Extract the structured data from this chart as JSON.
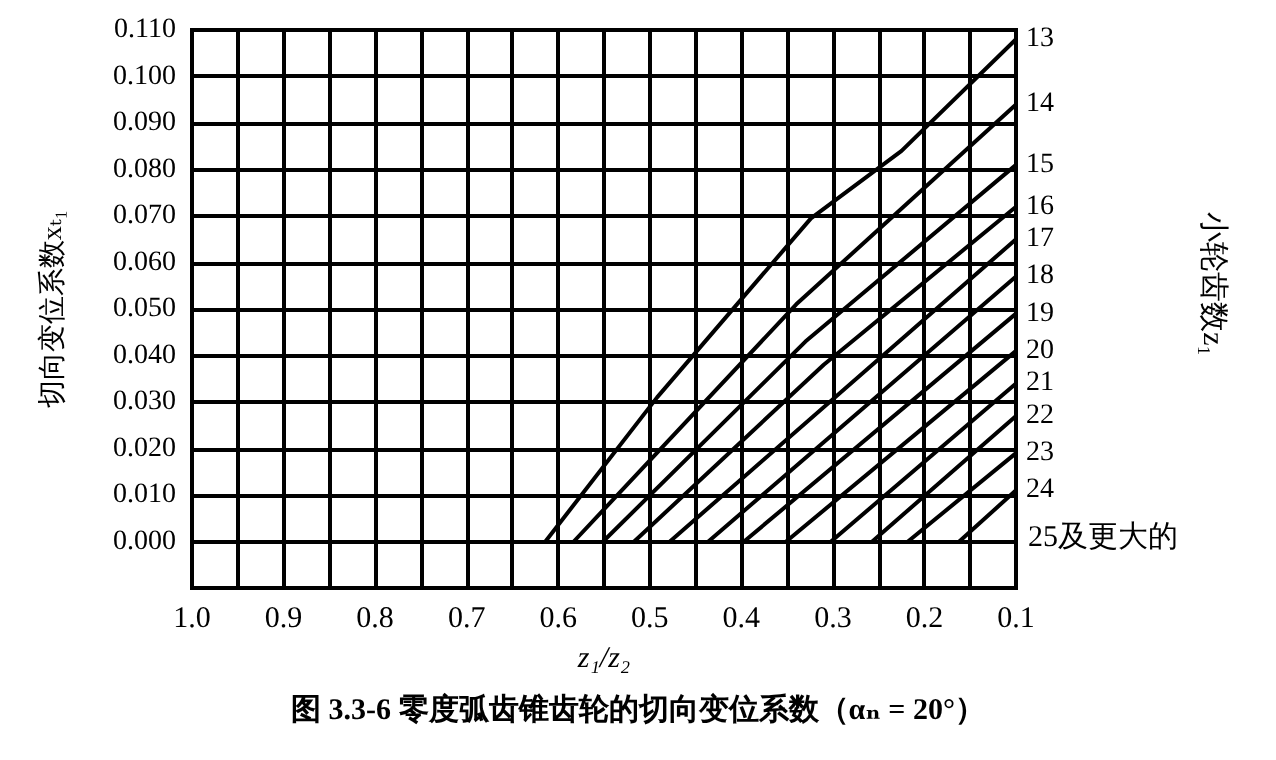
{
  "chart_data": {
    "type": "line",
    "title": "图 3.3-6 零度弧齿锥齿轮的切向变位系数（αₙ = 20°）",
    "xlabel": "z₁/z₂",
    "ylabel": "切向变位系数xₜ₁",
    "legend_title": "小轮齿数z₁",
    "xlim": [
      1.0,
      0.1
    ],
    "ylim": [
      -0.01,
      0.11
    ],
    "xticks": [
      {
        "value": 1.0,
        "label": "1.0"
      },
      {
        "value": 0.95,
        "label": null
      },
      0.9,
      {
        "value": 0.85,
        "label": null
      },
      0.8,
      {
        "value": 0.75,
        "label": null
      },
      0.7,
      {
        "value": 0.65,
        "label": null
      },
      0.6,
      {
        "value": 0.55,
        "label": null
      },
      0.5,
      {
        "value": 0.45,
        "label": null
      },
      0.4,
      {
        "value": 0.35,
        "label": null
      },
      0.3,
      {
        "value": 0.25,
        "label": null
      },
      0.2,
      {
        "value": 0.15,
        "label": null
      },
      0.1
    ],
    "yticks": [
      {
        "value": 0,
        "label": "0.000"
      },
      {
        "value": 0.01,
        "label": "0.010"
      },
      {
        "value": 0.02,
        "label": "0.020"
      },
      {
        "value": 0.03,
        "label": "0.030"
      },
      {
        "value": 0.04,
        "label": "0.040"
      },
      {
        "value": 0.05,
        "label": "0.050"
      },
      {
        "value": 0.06,
        "label": "0.060"
      },
      {
        "value": 0.07,
        "label": "0.070"
      },
      {
        "value": 0.08,
        "label": "0.080"
      },
      {
        "value": 0.09,
        "label": "0.090"
      },
      {
        "value": 0.1,
        "label": "0.100"
      },
      {
        "value": 0.11,
        "label": "0.110"
      }
    ],
    "grid": true,
    "legend": false,
    "marker": "none",
    "line_style": "solid",
    "annotations": [
      "25及更大的"
    ],
    "series": [
      {
        "name": "13",
        "color": "#000000",
        "x": [
          0.614,
          0.492,
          0.324,
          0.225,
          0.1
        ],
        "values": [
          0,
          0.031,
          0.0695,
          0.084,
          0.108
        ]
      },
      {
        "name": "14",
        "color": "#000000",
        "x": [
          0.583,
          0.34,
          0.1
        ],
        "values": [
          0,
          0.051,
          0.094
        ]
      },
      {
        "name": "15",
        "color": "#000000",
        "x": [
          0.551,
          0.33,
          0.1
        ],
        "values": [
          0,
          0.043,
          0.081
        ]
      },
      {
        "name": "16",
        "color": "#000000",
        "x": [
          0.517,
          0.31,
          0.1
        ],
        "values": [
          0,
          0.038,
          0.072
        ]
      },
      {
        "name": "17",
        "color": "#000000",
        "x": [
          0.478,
          0.1
        ],
        "values": [
          0,
          0.065
        ]
      },
      {
        "name": "18",
        "color": "#000000",
        "x": [
          0.436,
          0.1
        ],
        "values": [
          0,
          0.057
        ]
      },
      {
        "name": "19",
        "color": "#000000",
        "x": [
          0.397,
          0.1
        ],
        "values": [
          0,
          0.049
        ]
      },
      {
        "name": "20",
        "color": "#000000",
        "x": [
          0.351,
          0.1
        ],
        "values": [
          0,
          0.041
        ]
      },
      {
        "name": "21",
        "color": "#000000",
        "x": [
          0.302,
          0.1
        ],
        "values": [
          0,
          0.034
        ]
      },
      {
        "name": "22",
        "color": "#000000",
        "x": [
          0.257,
          0.1
        ],
        "values": [
          0,
          0.027
        ]
      },
      {
        "name": "23",
        "color": "#000000",
        "x": [
          0.218,
          0.1
        ],
        "values": [
          0,
          0.019
        ]
      },
      {
        "name": "24",
        "color": "#000000",
        "x": [
          0.162,
          0.1
        ],
        "values": [
          0,
          0.011
        ]
      }
    ]
  }
}
